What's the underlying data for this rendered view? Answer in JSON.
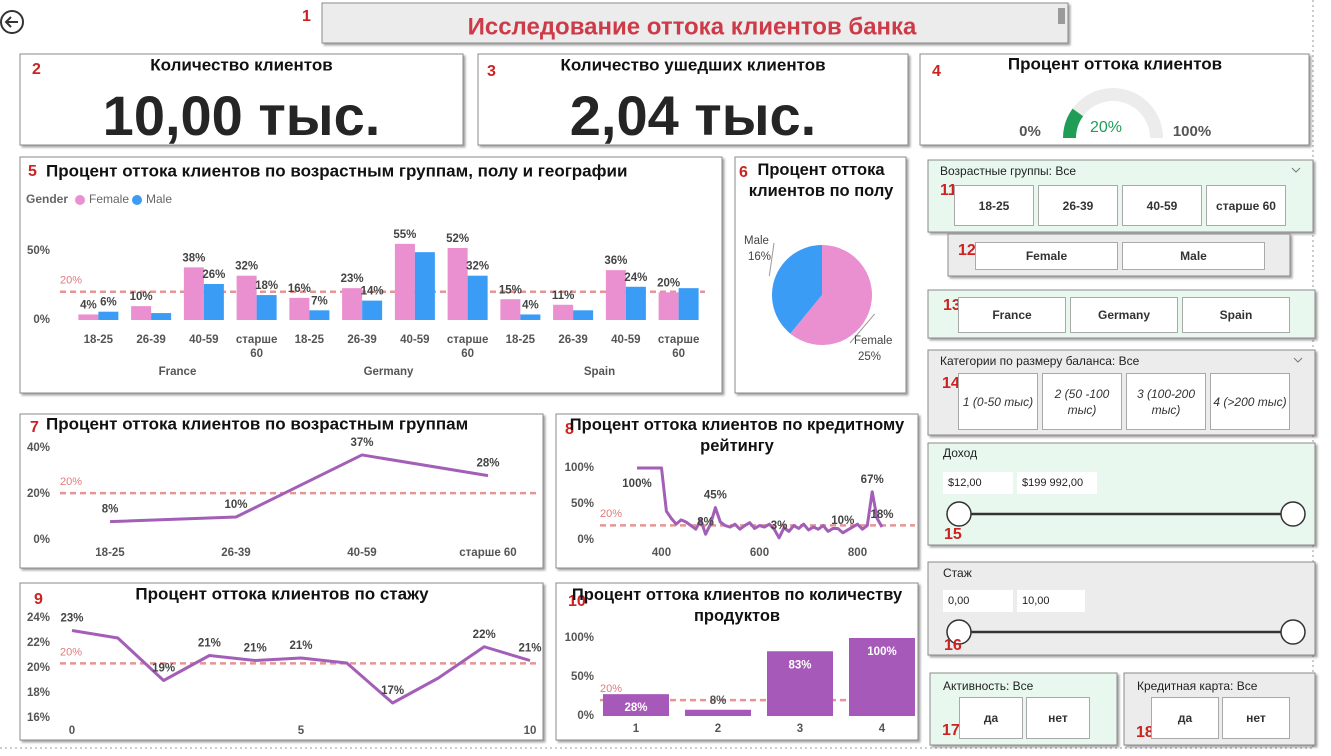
{
  "header": {
    "title": "Исследование оттока клиентов банка"
  },
  "section_numbers": [
    "1",
    "2",
    "3",
    "4",
    "5",
    "6",
    "7",
    "8",
    "9",
    "10",
    "11",
    "12",
    "13",
    "14",
    "15",
    "16",
    "17",
    "18"
  ],
  "cards": [
    {
      "title": "Количество клиентов",
      "value": "10,00 тыс."
    },
    {
      "title": "Количество ушедших клиентов",
      "value": "2,04 тыс."
    }
  ],
  "chart_data": [
    {
      "type": "gauge",
      "title": "Процент оттока клиентов",
      "values": [
        20
      ],
      "value_labels": [
        "20%"
      ],
      "ylim": [
        0,
        100
      ],
      "yticks": [
        {
          "value": 0,
          "label": "0%"
        },
        {
          "value": 100,
          "label": "100%"
        }
      ],
      "color": "#1f9d57",
      "track_color": "#ececec"
    },
    {
      "type": "grouped_bar",
      "title": "Процент оттока клиентов по возрастным группам, полу и географии",
      "legend_title": "Gender",
      "categories": [
        "18-25",
        "26-39",
        "40-59",
        "старше 60",
        "18-25",
        "26-39",
        "40-59",
        "старше 60",
        "18-25",
        "26-39",
        "40-59",
        "старше 60"
      ],
      "groups": [
        "France",
        "Germany",
        "Spain"
      ],
      "series": [
        {
          "name": "Female",
          "color": "#ea8fcf",
          "values": [
            4,
            10,
            38,
            32,
            16,
            23,
            55,
            52,
            15,
            11,
            36,
            20
          ],
          "value_labels": [
            "4%",
            "10%",
            "38%",
            "32%",
            "16%",
            "23%",
            "55%",
            "52%",
            "15%",
            "11%",
            "36%",
            "20%"
          ]
        },
        {
          "name": "Male",
          "color": "#3a9cf5",
          "values": [
            6,
            5,
            26,
            18,
            7,
            14,
            49,
            32,
            4,
            7,
            24,
            23
          ],
          "value_labels": [
            "6%",
            null,
            "26%",
            "18%",
            "7%",
            "14%",
            null,
            "32%",
            "4%",
            null,
            "24%",
            null
          ]
        }
      ],
      "ylim": [
        0,
        65
      ],
      "yticks": [
        {
          "value": 0,
          "label": "0%"
        },
        {
          "value": 50,
          "label": "50%"
        }
      ],
      "reference_line": {
        "value": 20.37,
        "label": "20%",
        "color": "#e07b7b"
      }
    },
    {
      "type": "pie",
      "title": "Процент оттока клиентов по полу",
      "categories": [
        "Female",
        "Male"
      ],
      "values": [
        25,
        16
      ],
      "value_labels": [
        "25%",
        "16%"
      ],
      "colors": [
        "#ea8fcf",
        "#3a9cf5"
      ]
    },
    {
      "type": "line",
      "title": "Процент оттока клиентов по возрастным группам",
      "categories": [
        "18-25",
        "26-39",
        "40-59",
        "старше 60"
      ],
      "values": [
        8,
        10,
        37,
        28
      ],
      "value_labels": [
        "8%",
        "10%",
        "37%",
        "28%"
      ],
      "color": "#a35fb8",
      "ylim": [
        0,
        43.5
      ],
      "yticks": [
        {
          "value": 0,
          "label": "0%"
        },
        {
          "value": 20,
          "label": "20%"
        },
        {
          "value": 40,
          "label": "40%"
        }
      ],
      "reference_line": {
        "value": 20.37,
        "label": "20%",
        "color": "#e07b7b"
      }
    },
    {
      "type": "line",
      "title": "Процент оттока клиентов по кредитному рейтингу",
      "x": [
        350,
        360,
        370,
        380,
        390,
        400,
        410,
        420,
        430,
        440,
        450,
        460,
        470,
        480,
        490,
        500,
        510,
        520,
        530,
        540,
        550,
        560,
        570,
        580,
        590,
        600,
        610,
        620,
        630,
        640,
        650,
        660,
        670,
        680,
        690,
        700,
        710,
        720,
        730,
        740,
        750,
        760,
        770,
        780,
        790,
        800,
        810,
        820,
        830,
        840,
        850
      ],
      "values": [
        100,
        100,
        100,
        100,
        100,
        100,
        40,
        30,
        22,
        28,
        25,
        20,
        15,
        28,
        8,
        22,
        45,
        25,
        20,
        18,
        22,
        15,
        20,
        24,
        16,
        20,
        18,
        22,
        15,
        3,
        17,
        12,
        20,
        16,
        22,
        14,
        18,
        15,
        20,
        12,
        16,
        16,
        10,
        14,
        18,
        22,
        15,
        20,
        67,
        30,
        18
      ],
      "value_labels": [
        "100%",
        null,
        null,
        null,
        null,
        null,
        null,
        null,
        null,
        null,
        null,
        null,
        null,
        null,
        "8%",
        null,
        "45%",
        null,
        null,
        null,
        null,
        null,
        null,
        null,
        null,
        null,
        null,
        null,
        null,
        "3%",
        null,
        null,
        null,
        null,
        null,
        null,
        null,
        null,
        null,
        null,
        null,
        null,
        "10%",
        null,
        null,
        null,
        null,
        null,
        "67%",
        null,
        "18%"
      ],
      "color": "#a35fb8",
      "xlim": [
        350,
        850
      ],
      "xticks": [
        400,
        600,
        800
      ],
      "ylim": [
        0,
        108.3
      ],
      "yticks": [
        {
          "value": 0,
          "label": "0%"
        },
        {
          "value": 50,
          "label": "50%"
        },
        {
          "value": 100,
          "label": "100%"
        }
      ],
      "reference_line": {
        "value": 20.37,
        "label": "20%",
        "color": "#e07b7b"
      }
    },
    {
      "type": "line",
      "title": "Процент оттока клиентов по стажу",
      "x": [
        0,
        1,
        2,
        3,
        4,
        5,
        6,
        7,
        8,
        9,
        10
      ],
      "values": [
        23,
        22.4,
        19,
        21,
        20.6,
        20.8,
        20.4,
        17.2,
        19.2,
        21.7,
        20.6
      ],
      "value_labels": [
        "23%",
        null,
        "19%",
        "21%",
        "21%",
        "21%",
        null,
        "17%",
        null,
        "22%",
        "21%"
      ],
      "color": "#a35fb8",
      "xlim": [
        0,
        10
      ],
      "xticks": [
        0,
        5,
        10
      ],
      "ylim": [
        16,
        24
      ],
      "yticks": [
        {
          "value": 16,
          "label": "16%"
        },
        {
          "value": 18,
          "label": "18%"
        },
        {
          "value": 20,
          "label": "20%"
        },
        {
          "value": 22,
          "label": "22%"
        },
        {
          "value": 24,
          "label": "24%"
        }
      ],
      "reference_line": {
        "value": 20.37,
        "label": "20%",
        "color": "#e07b7b"
      }
    },
    {
      "type": "bar",
      "title": "Процент оттока клиентов по количеству продуктов",
      "categories": [
        "1",
        "2",
        "3",
        "4"
      ],
      "values": [
        28,
        8,
        83,
        100
      ],
      "value_labels": [
        "28%",
        "8%",
        "83%",
        "100%"
      ],
      "color": "#a659b9",
      "ylim": [
        0,
        100
      ],
      "yticks": [
        {
          "value": 0,
          "label": "0%"
        },
        {
          "value": 50,
          "label": "50%"
        },
        {
          "value": 100,
          "label": "100%"
        }
      ],
      "reference_line": {
        "value": 20.37,
        "label": "20%",
        "color": "#e07b7b"
      }
    }
  ],
  "slicers": [
    {
      "header": "Возрастные группы: Все",
      "options": [
        "18-25",
        "26-39",
        "40-59",
        "старше 60"
      ]
    },
    {
      "options": [
        "Female",
        "Male"
      ]
    },
    {
      "options": [
        "France",
        "Germany",
        "Spain"
      ]
    },
    {
      "header": "Категории по размеру баланса: Все",
      "options": [
        "1 (0-50 тыс)",
        "2 (50 -100 тыс)",
        "3 (100-200 тыс)",
        "4 (>200 тыс)"
      ]
    },
    {
      "header": "Доход",
      "range": [
        "$12,00",
        "$199 992,00"
      ]
    },
    {
      "header": "Стаж",
      "range": [
        "0,00",
        "10,00"
      ]
    },
    {
      "header": "Активность: Все",
      "options": [
        "да",
        "нет"
      ]
    },
    {
      "header": "Кредитная карта: Все",
      "options": [
        "да",
        "нет"
      ]
    }
  ]
}
